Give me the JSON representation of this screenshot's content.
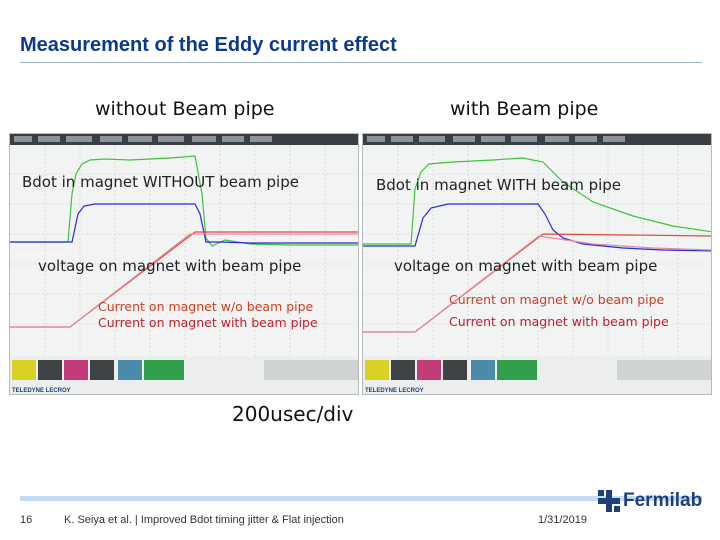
{
  "slide": {
    "title": "Measurement of the Eddy current effect",
    "col_left": "without Beam pipe",
    "col_right": "with Beam pipe",
    "time_scale": "200usec/div"
  },
  "panels": [
    {
      "bdot_label": "Bdot in magnet WITHOUT beam pipe",
      "voltage_label": "voltage on magnet with beam pipe",
      "current_label_1": "Current on magnet w/o beam pipe",
      "current_label_2": "Current on magnet with beam pipe",
      "scope_brand": "TELEDYNE LECROY"
    },
    {
      "bdot_label": "Bdot in magnet WITH beam pipe",
      "voltage_label": "voltage on magnet with beam pipe",
      "current_label_1": "Current on magnet w/o beam pipe",
      "current_label_2": "Current on magnet with beam pipe",
      "scope_brand": "TELEDYNE LECROY"
    }
  ],
  "footer": {
    "page_number": "16",
    "citation": "K. Seiya et al. | Improved Bdot timing jitter & Flat injection",
    "date": "1/31/2019",
    "logo_text": "Fermilab"
  },
  "colors": {
    "title": "#0b3a8a",
    "trace_green": "#3cc43c",
    "trace_blue": "#2a2ad8",
    "trace_red": "#e04a3a",
    "trace_pink": "#e58aa0"
  },
  "icons": [
    "fermilab-logo-icon"
  ]
}
